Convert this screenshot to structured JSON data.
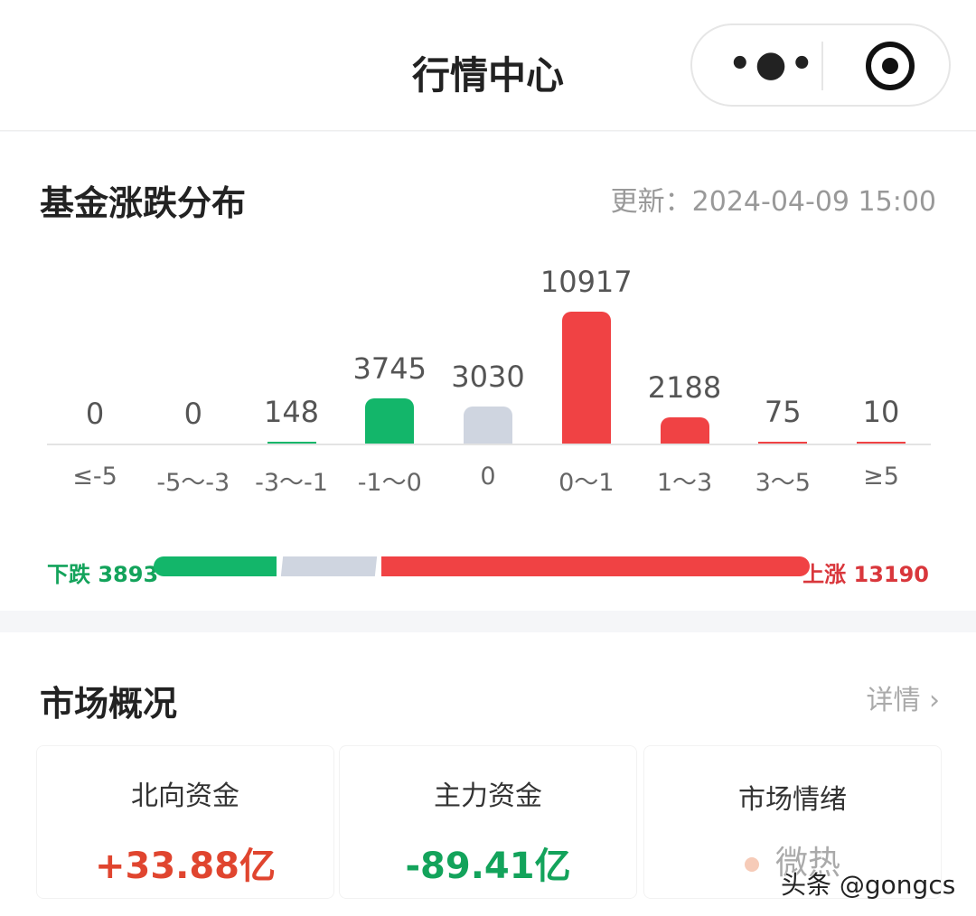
{
  "header": {
    "title": "行情中心",
    "more_icon": "more-dots-icon",
    "close_icon": "target-circle-icon"
  },
  "fund_dist": {
    "title": "基金涨跌分布",
    "update": "更新：2024-04-09 15:00",
    "chart_data": {
      "type": "bar",
      "categories": [
        "≤-5",
        "-5～-3",
        "-3～-1",
        "-1～0",
        "0",
        "0～1",
        "1～3",
        "3～5",
        "≥5"
      ],
      "values": [
        0,
        0,
        148,
        3745,
        3030,
        10917,
        2188,
        75,
        10
      ],
      "value_labels": [
        "0",
        "0",
        "148",
        "3745",
        "3030",
        "10917",
        "2188",
        "75",
        "10"
      ],
      "colors": [
        "#13b66a",
        "#13b66a",
        "#13b66a",
        "#13b66a",
        "#cfd5e0",
        "#f04244",
        "#f04244",
        "#f04244",
        "#f04244"
      ],
      "ylim": [
        0,
        10917
      ]
    },
    "down_label": "下跌 3893",
    "up_label": "上涨 13190",
    "down": 3893,
    "flat": 3030,
    "up": 13190,
    "colors": {
      "down": "#13b66a",
      "flat": "#cfd5e0",
      "up": "#f04244"
    }
  },
  "market": {
    "title": "市场概况",
    "detail": "详情",
    "cards": [
      {
        "label": "北向资金",
        "value": "+33.88亿",
        "color": "#e0452f"
      },
      {
        "label": "主力资金",
        "value": "-89.41亿",
        "color": "#13a35b"
      },
      {
        "label": "市场情绪",
        "value": "微热",
        "color": "#aaaaaa"
      }
    ]
  },
  "watermark": "头条 @gongcs"
}
